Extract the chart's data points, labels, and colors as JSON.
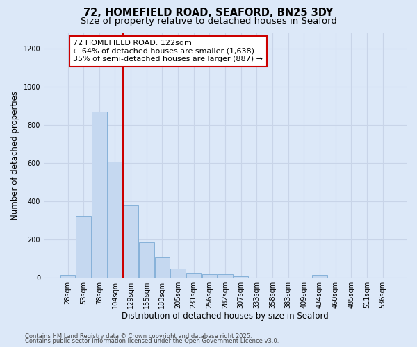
{
  "title1": "72, HOMEFIELD ROAD, SEAFORD, BN25 3DY",
  "title2": "Size of property relative to detached houses in Seaford",
  "xlabel": "Distribution of detached houses by size in Seaford",
  "ylabel": "Number of detached properties",
  "categories": [
    "28sqm",
    "53sqm",
    "78sqm",
    "104sqm",
    "129sqm",
    "155sqm",
    "180sqm",
    "205sqm",
    "231sqm",
    "256sqm",
    "282sqm",
    "307sqm",
    "333sqm",
    "358sqm",
    "383sqm",
    "409sqm",
    "434sqm",
    "460sqm",
    "485sqm",
    "511sqm",
    "536sqm"
  ],
  "values": [
    13,
    323,
    868,
    607,
    377,
    183,
    104,
    47,
    20,
    18,
    18,
    5,
    0,
    0,
    0,
    0,
    13,
    0,
    0,
    0,
    0
  ],
  "bar_color": "#c5d8f0",
  "bar_edge_color": "#7aaad4",
  "vline_pos": 3.5,
  "vline_color": "#cc0000",
  "ann_line1": "72 HOMEFIELD ROAD: 122sqm",
  "ann_line2": "← 64% of detached houses are smaller (1,638)",
  "ann_line3": "35% of semi-detached houses are larger (887) →",
  "ann_facecolor": "#ffffff",
  "ann_edgecolor": "#cc0000",
  "ylim_max": 1280,
  "yticks": [
    0,
    200,
    400,
    600,
    800,
    1000,
    1200
  ],
  "grid_color": "#c8d4e8",
  "bg_color": "#dce8f8",
  "footer1": "Contains HM Land Registry data © Crown copyright and database right 2025.",
  "footer2": "Contains public sector information licensed under the Open Government Licence v3.0.",
  "title_fontsize": 10.5,
  "subtitle_fontsize": 9.5,
  "tick_fontsize": 7,
  "axis_label_fontsize": 8.5,
  "ann_fontsize": 8,
  "footer_fontsize": 6
}
